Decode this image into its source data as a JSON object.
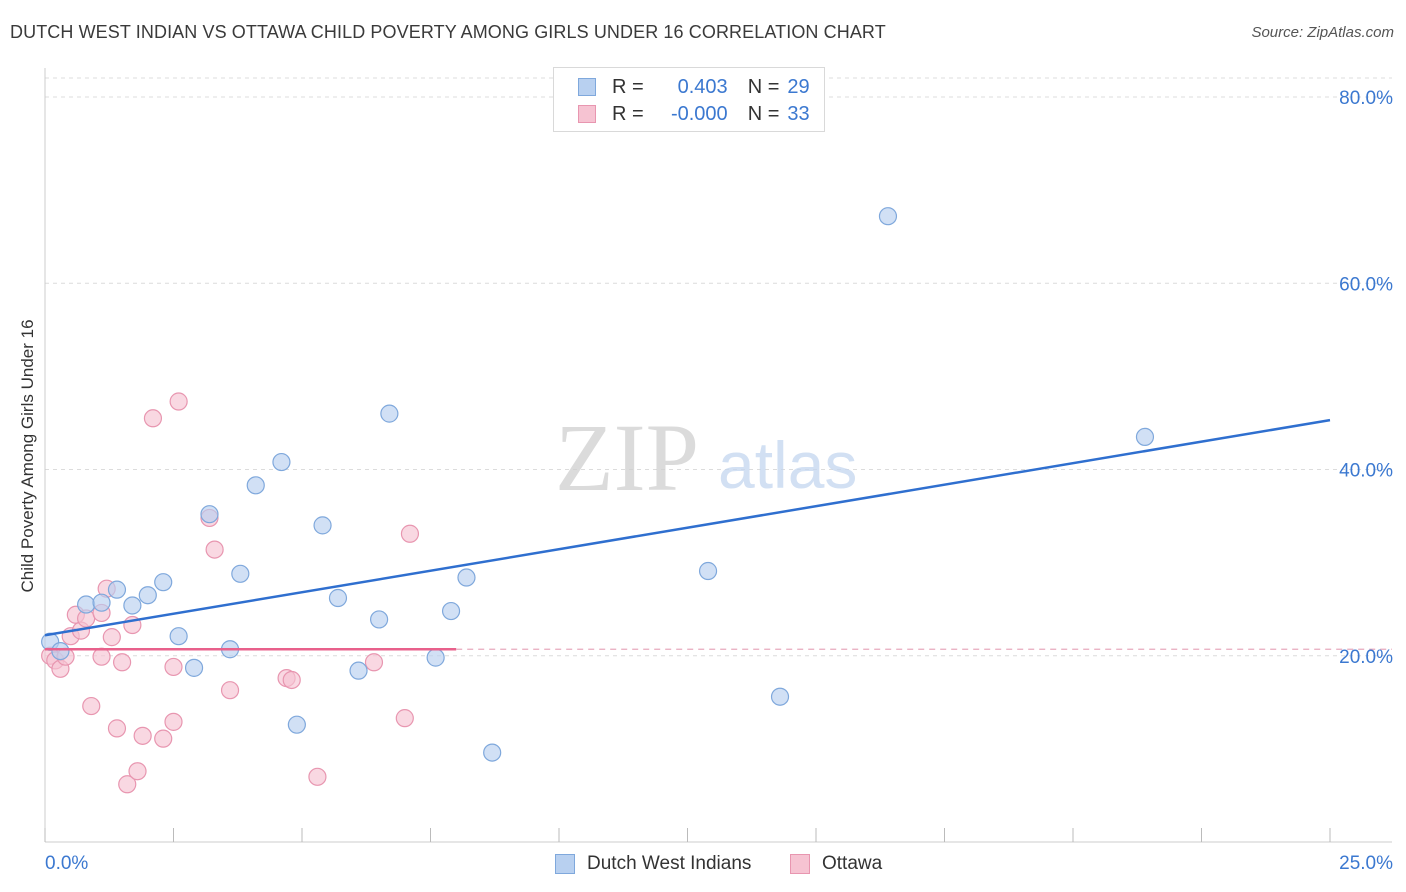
{
  "title": "DUTCH WEST INDIAN VS OTTAWA CHILD POVERTY AMONG GIRLS UNDER 16 CORRELATION CHART",
  "source": "Source: ZipAtlas.com",
  "watermark": {
    "zip": "ZIP",
    "atlas": "atlas"
  },
  "legend": {
    "series1": {
      "r_label": "R =",
      "r_value": "0.403",
      "n_label": "N =",
      "n_value": "29"
    },
    "series2": {
      "r_label": "R =",
      "r_value": "-0.000",
      "n_label": "N =",
      "n_value": "33"
    }
  },
  "bottom_legend": {
    "series1": "Dutch West Indians",
    "series2": "Ottawa"
  },
  "colors": {
    "blue_fill": "#b8d0f0",
    "blue_stroke": "#7fa8dc",
    "blue_line": "#2f6fcf",
    "pink_fill": "#f6c3d2",
    "pink_stroke": "#e896b0",
    "pink_line": "#e8608b",
    "tick_label": "#3b78d0",
    "grid": "#dcdcdc"
  },
  "chart_data": {
    "type": "scatter",
    "title": "DUTCH WEST INDIAN VS OTTAWA CHILD POVERTY AMONG GIRLS UNDER 16 CORRELATION CHART",
    "xlabel": "",
    "ylabel": "Child Poverty Among Girls Under 16",
    "xlim": [
      0,
      25
    ],
    "ylim": [
      0,
      82
    ],
    "x_tick_labels": [
      "0.0%",
      "25.0%"
    ],
    "y_ticks": [
      20,
      40,
      60,
      80
    ],
    "y_tick_labels": [
      "20.0%",
      "40.0%",
      "60.0%",
      "80.0%"
    ],
    "grid": true,
    "series": [
      {
        "name": "Dutch West Indians",
        "color": "#b8d0f0",
        "points": [
          [
            0.1,
            21.5
          ],
          [
            0.3,
            20.5
          ],
          [
            0.8,
            25.5
          ],
          [
            1.1,
            25.7
          ],
          [
            1.4,
            27.1
          ],
          [
            1.7,
            25.4
          ],
          [
            2.0,
            26.5
          ],
          [
            2.3,
            27.9
          ],
          [
            2.6,
            22.1
          ],
          [
            2.9,
            18.7
          ],
          [
            3.2,
            35.2
          ],
          [
            3.6,
            20.7
          ],
          [
            3.8,
            28.8
          ],
          [
            4.1,
            38.3
          ],
          [
            4.6,
            40.8
          ],
          [
            4.9,
            12.6
          ],
          [
            5.4,
            34.0
          ],
          [
            5.7,
            26.2
          ],
          [
            6.1,
            18.4
          ],
          [
            6.5,
            23.9
          ],
          [
            6.7,
            46.0
          ],
          [
            7.6,
            19.8
          ],
          [
            7.9,
            24.8
          ],
          [
            8.2,
            28.4
          ],
          [
            8.7,
            9.6
          ],
          [
            12.9,
            29.1
          ],
          [
            14.3,
            15.6
          ],
          [
            16.4,
            67.2
          ],
          [
            21.4,
            43.5
          ]
        ],
        "trend": {
          "x": [
            0,
            25
          ],
          "y": [
            22.2,
            45.3
          ]
        }
      },
      {
        "name": "Ottawa",
        "color": "#f6c3d2",
        "points": [
          [
            0.1,
            20.0
          ],
          [
            0.2,
            19.5
          ],
          [
            0.3,
            18.6
          ],
          [
            0.4,
            19.9
          ],
          [
            0.5,
            22.1
          ],
          [
            0.6,
            24.4
          ],
          [
            0.7,
            22.7
          ],
          [
            0.8,
            24.0
          ],
          [
            0.9,
            14.6
          ],
          [
            1.1,
            24.6
          ],
          [
            1.1,
            19.9
          ],
          [
            1.2,
            27.2
          ],
          [
            1.3,
            22.0
          ],
          [
            1.4,
            12.2
          ],
          [
            1.5,
            19.3
          ],
          [
            1.6,
            6.2
          ],
          [
            1.7,
            23.3
          ],
          [
            1.8,
            7.6
          ],
          [
            1.9,
            11.4
          ],
          [
            2.1,
            45.5
          ],
          [
            2.3,
            11.1
          ],
          [
            2.5,
            18.8
          ],
          [
            2.5,
            12.9
          ],
          [
            2.6,
            47.3
          ],
          [
            3.2,
            34.8
          ],
          [
            3.3,
            31.4
          ],
          [
            3.6,
            16.3
          ],
          [
            4.7,
            17.6
          ],
          [
            4.8,
            17.4
          ],
          [
            5.3,
            7.0
          ],
          [
            6.4,
            19.3
          ],
          [
            7.0,
            13.3
          ],
          [
            7.1,
            33.1
          ]
        ],
        "trend": {
          "x": [
            0,
            8.0
          ],
          "y": [
            20.7,
            20.7
          ]
        }
      }
    ]
  }
}
